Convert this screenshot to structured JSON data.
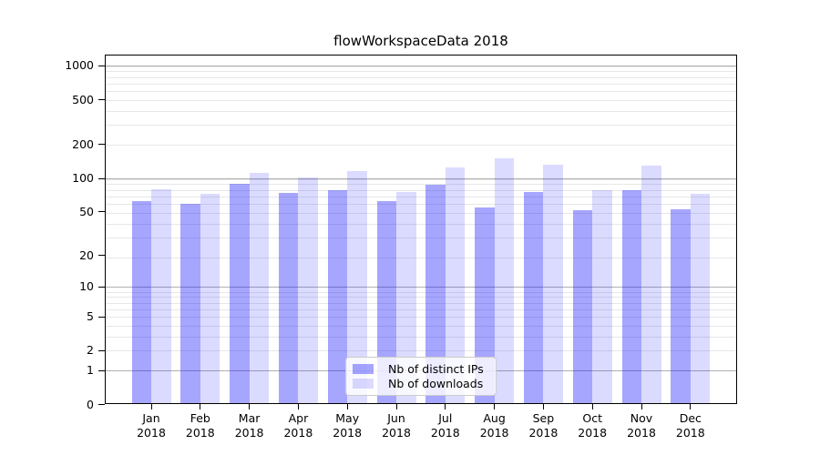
{
  "figure": {
    "background": "#ffffff"
  },
  "colors": {
    "bar_ips": "rgba(0,0,255,0.35)",
    "bar_downloads": "rgba(0,0,255,0.14)",
    "grid_major": "#b0b0b0",
    "grid_minor": "#e7e7e7",
    "axis": "#000000",
    "legend_border": "#cccccc",
    "legend_bg": "rgba(255,255,255,0.8)"
  },
  "chart_data": {
    "type": "bar",
    "title": "flowWorkspaceData 2018",
    "categories": [
      "Jan 2018",
      "Feb 2018",
      "Mar 2018",
      "Apr 2018",
      "May 2018",
      "Jun 2018",
      "Jul 2018",
      "Aug 2018",
      "Sep 2018",
      "Oct 2018",
      "Nov 2018",
      "Dec 2018"
    ],
    "x_tick_months": [
      "Jan",
      "Feb",
      "Mar",
      "Apr",
      "May",
      "Jun",
      "Jul",
      "Aug",
      "Sep",
      "Oct",
      "Nov",
      "Dec"
    ],
    "x_tick_year": "2018",
    "series": [
      {
        "name": "Nb of distinct IPs",
        "color": "rgba(0,0,255,0.35)",
        "values": [
          62,
          59,
          90,
          74,
          78,
          62,
          88,
          55,
          76,
          52,
          78,
          53
        ]
      },
      {
        "name": "Nb of downloads",
        "color": "rgba(0,0,255,0.14)",
        "values": [
          80,
          73,
          112,
          102,
          116,
          75,
          125,
          152,
          133,
          79,
          130,
          72
        ]
      }
    ],
    "yscale": "log1p",
    "yticks": [
      0,
      1,
      2,
      5,
      10,
      20,
      50,
      100,
      200,
      500,
      1000
    ],
    "ylim": [
      0,
      1200
    ],
    "grid": true,
    "legend_position": "lower center"
  },
  "legend": {
    "items": [
      {
        "label": "Nb of distinct IPs"
      },
      {
        "label": "Nb of downloads"
      }
    ]
  }
}
